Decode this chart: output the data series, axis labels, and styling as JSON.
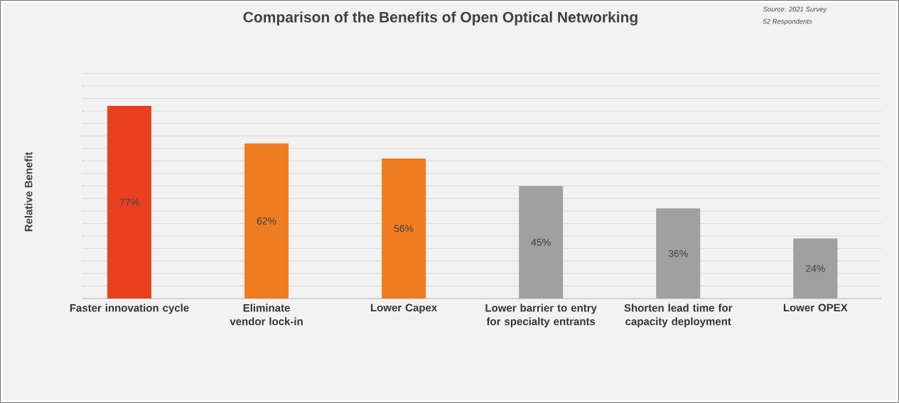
{
  "chart_data": {
    "type": "bar",
    "title": "Comparison of the Benefits of Open Optical Networking",
    "ylabel": "Relative Benefit",
    "annotations": [
      "Source: 2021 Survey",
      "52 Respondents"
    ],
    "categories": [
      "Faster innovation cycle",
      "Eliminate vendor lock-in",
      "Lower Capex",
      "Lower barrier to entry for specialty entrants",
      "Shorten lead time for capacity deployment",
      "Lower OPEX"
    ],
    "values": [
      77,
      62,
      56,
      45,
      36,
      24
    ],
    "value_labels": [
      "77%",
      "62%",
      "56%",
      "45%",
      "36%",
      "24%"
    ],
    "colors": [
      "#e8401f",
      "#f07c22",
      "#f07c22",
      "#a0a0a0",
      "#a0a0a0",
      "#a0a0a0"
    ],
    "grid": "y",
    "tick_labels": "x"
  }
}
